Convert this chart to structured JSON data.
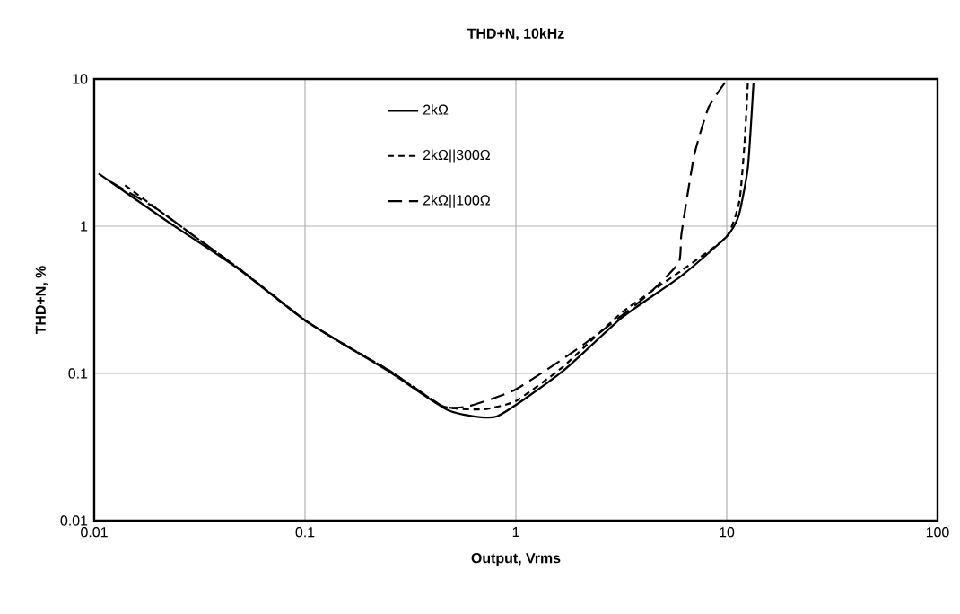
{
  "chart_data": {
    "type": "line",
    "title": "THD+N, 10kHz",
    "xlabel": "Output, Vrms",
    "ylabel": "THD+N, %",
    "log": "xy",
    "grid": true,
    "legend": "top",
    "xlim": [
      0.01,
      100
    ],
    "ylim": [
      0.01,
      10
    ],
    "xticks": [
      0.01,
      0.1,
      1,
      10,
      100
    ],
    "yticks": [
      0.01,
      0.1,
      1,
      10
    ],
    "series": [
      {
        "name": "2kΩ",
        "color": "#000000",
        "line_style": "solid",
        "x": [
          0.0105,
          0.0222,
          0.0488,
          0.1,
          0.25,
          0.48,
          0.81,
          1.66,
          3.19,
          6.1,
          10,
          11.4,
          12.6,
          13.4
        ],
        "values": [
          2.28,
          1.08,
          0.508,
          0.229,
          0.103,
          0.056,
          0.051,
          0.103,
          0.24,
          0.46,
          0.85,
          1.18,
          2.5,
          9.4
        ]
      },
      {
        "name": "2kΩ||300Ω",
        "color": "#000000",
        "line_style": "dashed",
        "x": [
          0.014,
          0.02,
          0.03,
          0.05,
          0.1,
          0.15,
          0.25,
          0.45,
          0.7,
          1,
          1.66,
          3.19,
          6.1,
          10,
          11.5,
          12.2,
          12.6
        ],
        "values": [
          1.9,
          1.3,
          0.85,
          0.5,
          0.23,
          0.16,
          0.105,
          0.06,
          0.057,
          0.065,
          0.11,
          0.26,
          0.5,
          0.85,
          1.5,
          4,
          9.6
        ]
      },
      {
        "name": "2kΩ||100Ω",
        "color": "#000000",
        "line_style": "longdashed",
        "x": [
          0.012,
          0.02,
          0.03,
          0.05,
          0.1,
          0.15,
          0.25,
          0.45,
          0.6,
          1,
          2,
          4,
          5.9,
          6.1,
          7.0,
          8.2,
          10
        ],
        "values": [
          2.0,
          1.3,
          0.85,
          0.5,
          0.23,
          0.16,
          0.105,
          0.06,
          0.06,
          0.078,
          0.15,
          0.32,
          0.56,
          0.89,
          3.0,
          6.4,
          9.8
        ]
      }
    ]
  }
}
